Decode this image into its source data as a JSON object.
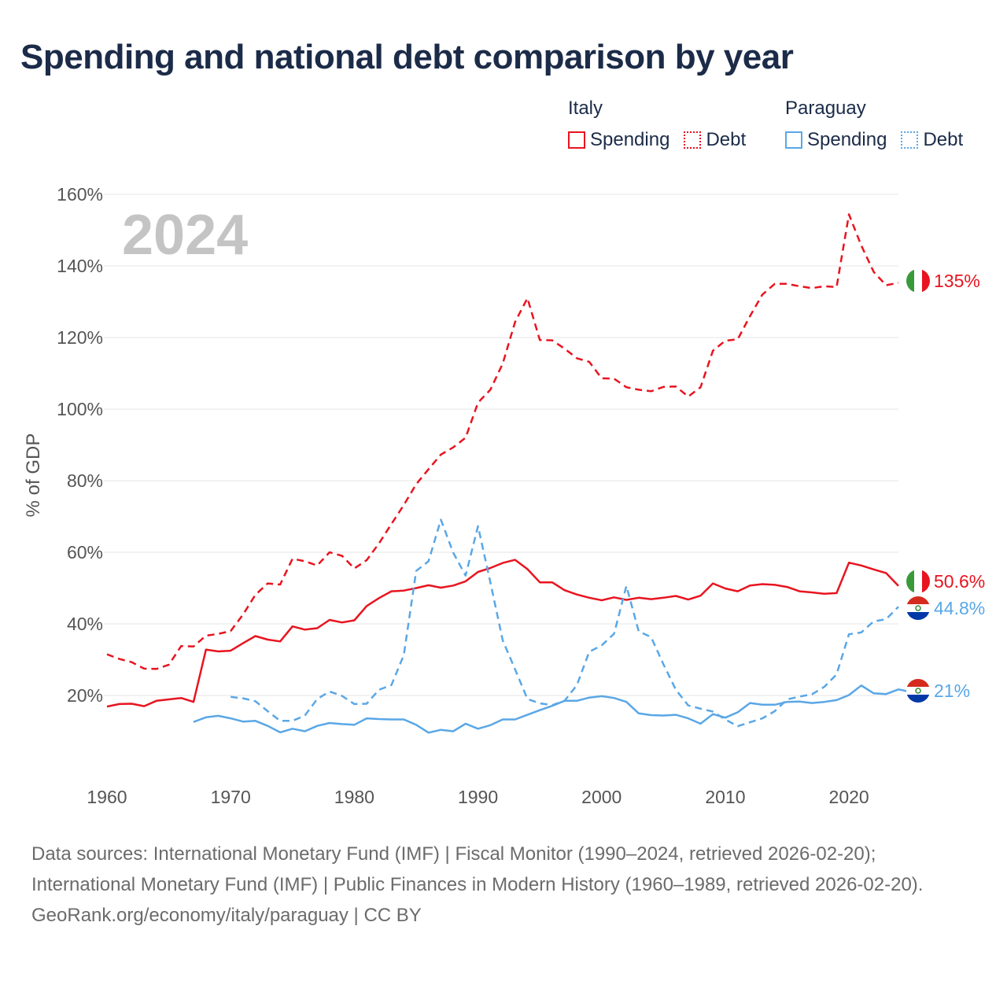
{
  "title": "Spending and national debt comparison by year",
  "legend": [
    {
      "country": "Italy",
      "items": [
        {
          "label": "Spending",
          "color": "#e8141f",
          "style": "solid"
        },
        {
          "label": "Debt",
          "color": "#e8141f",
          "style": "dotted"
        }
      ]
    },
    {
      "country": "Paraguay",
      "items": [
        {
          "label": "Spending",
          "color": "#5aa7e6",
          "style": "solid"
        },
        {
          "label": "Debt",
          "color": "#5aa7e6",
          "style": "dotted"
        }
      ]
    }
  ],
  "footer": {
    "sources": "Data sources: International Monetary Fund (IMF) | Fiscal Monitor (1990–2024, retrieved 2026-02-20); International Monetary Fund (IMF) | Public Finances in Modern History (1960–1989, retrieved 2026-02-20).",
    "credit": "GeoRank.org/economy/italy/paraguay | CC BY"
  },
  "chart_data": {
    "type": "line",
    "year_label": "2024",
    "ylabel": "% of GDP",
    "xlim": [
      1960,
      2024
    ],
    "ylim": [
      0,
      160
    ],
    "x_ticks": [
      1960,
      1970,
      1980,
      1990,
      2000,
      2010,
      2020
    ],
    "y_ticks": [
      20,
      40,
      60,
      80,
      100,
      120,
      140,
      160
    ],
    "y_tick_labels": [
      "20%",
      "40%",
      "60%",
      "80%",
      "100%",
      "120%",
      "140%",
      "160%"
    ],
    "series": [
      {
        "name": "Italy Debt",
        "country": "Italy",
        "metric": "Debt",
        "color": "#e8141f",
        "dashed": true,
        "end_label": "135%",
        "start_year": 1960,
        "values": [
          31.5,
          30.2,
          29.3,
          27.5,
          27.4,
          28.6,
          33.8,
          33.7,
          36.7,
          37.2,
          38.0,
          42.6,
          48.1,
          51.3,
          51.0,
          58.2,
          57.5,
          56.3,
          60.0,
          59.0,
          55.5,
          57.8,
          62.5,
          67.9,
          73.2,
          79.0,
          83.2,
          87.3,
          89.3,
          92.0,
          101.8,
          105.4,
          112.7,
          124.3,
          131.0,
          119.3,
          119.2,
          116.9,
          114.2,
          113.2,
          108.6,
          108.5,
          106.1,
          105.4,
          105.0,
          106.2,
          106.3,
          103.5,
          106.1,
          116.3,
          119.1,
          119.5,
          126.0,
          132.0,
          135.0,
          135.0,
          134.3,
          133.8,
          134.3,
          134.1,
          154.4,
          145.7,
          138.3,
          134.6,
          135.3
        ]
      },
      {
        "name": "Italy Spending",
        "country": "Italy",
        "metric": "Spending",
        "color": "#e8141f",
        "dashed": false,
        "end_label": "50.6%",
        "start_year": 1960,
        "values": [
          16.9,
          17.6,
          17.7,
          17.0,
          18.5,
          18.9,
          19.3,
          18.2,
          32.8,
          32.3,
          32.5,
          34.6,
          36.6,
          35.6,
          35.1,
          39.3,
          38.4,
          38.8,
          41.1,
          40.4,
          41.0,
          45.0,
          47.2,
          49.1,
          49.3,
          50.0,
          50.8,
          50.1,
          50.7,
          51.9,
          54.5,
          55.6,
          57.0,
          57.9,
          55.3,
          51.6,
          51.6,
          49.4,
          48.2,
          47.3,
          46.6,
          47.4,
          46.7,
          47.3,
          46.9,
          47.3,
          47.8,
          46.8,
          47.9,
          51.3,
          49.9,
          49.1,
          50.7,
          51.1,
          50.9,
          50.3,
          49.1,
          48.8,
          48.4,
          48.6,
          57.1,
          56.3,
          55.2,
          54.2,
          50.6
        ]
      },
      {
        "name": "Paraguay Debt",
        "country": "Paraguay",
        "metric": "Debt",
        "color": "#5aa7e6",
        "dashed": true,
        "end_label": "44.8%",
        "start_year": 1970,
        "values": [
          19.6,
          19.2,
          18.4,
          15.6,
          12.9,
          12.9,
          14.4,
          19.0,
          21.1,
          19.9,
          17.6,
          17.7,
          21.6,
          22.9,
          31.3,
          54.8,
          57.5,
          69.1,
          59.9,
          53.5,
          67.3,
          51.6,
          35.4,
          27.3,
          19.0,
          17.8,
          17.3,
          18.5,
          22.9,
          32.2,
          34.0,
          37.2,
          50.6,
          37.9,
          36.3,
          28.7,
          21.6,
          17.2,
          16.3,
          15.5,
          13.3,
          11.4,
          12.5,
          13.6,
          15.6,
          18.9,
          19.7,
          20.3,
          22.4,
          25.9,
          37.1,
          37.6,
          40.7,
          41.3,
          44.8
        ]
      },
      {
        "name": "Paraguay Spending",
        "country": "Paraguay",
        "metric": "Spending",
        "color": "#5aa7e6",
        "dashed": false,
        "end_label": "21%",
        "start_year": 1967,
        "values": [
          12.6,
          13.9,
          14.3,
          13.6,
          12.7,
          12.9,
          11.5,
          9.7,
          10.7,
          10.0,
          11.5,
          12.3,
          12.0,
          11.8,
          13.6,
          13.4,
          13.3,
          13.3,
          11.8,
          9.6,
          10.4,
          10.0,
          12.1,
          10.7,
          11.7,
          13.3,
          13.3,
          14.6,
          15.9,
          17.1,
          18.5,
          18.5,
          19.4,
          19.8,
          19.3,
          18.2,
          15.0,
          14.5,
          14.4,
          14.6,
          13.6,
          12.1,
          14.8,
          13.8,
          15.3,
          17.9,
          17.4,
          17.4,
          18.2,
          18.3,
          17.9,
          18.2,
          18.7,
          20.1,
          22.8,
          20.6,
          20.4,
          21.7,
          21.0
        ]
      }
    ]
  }
}
